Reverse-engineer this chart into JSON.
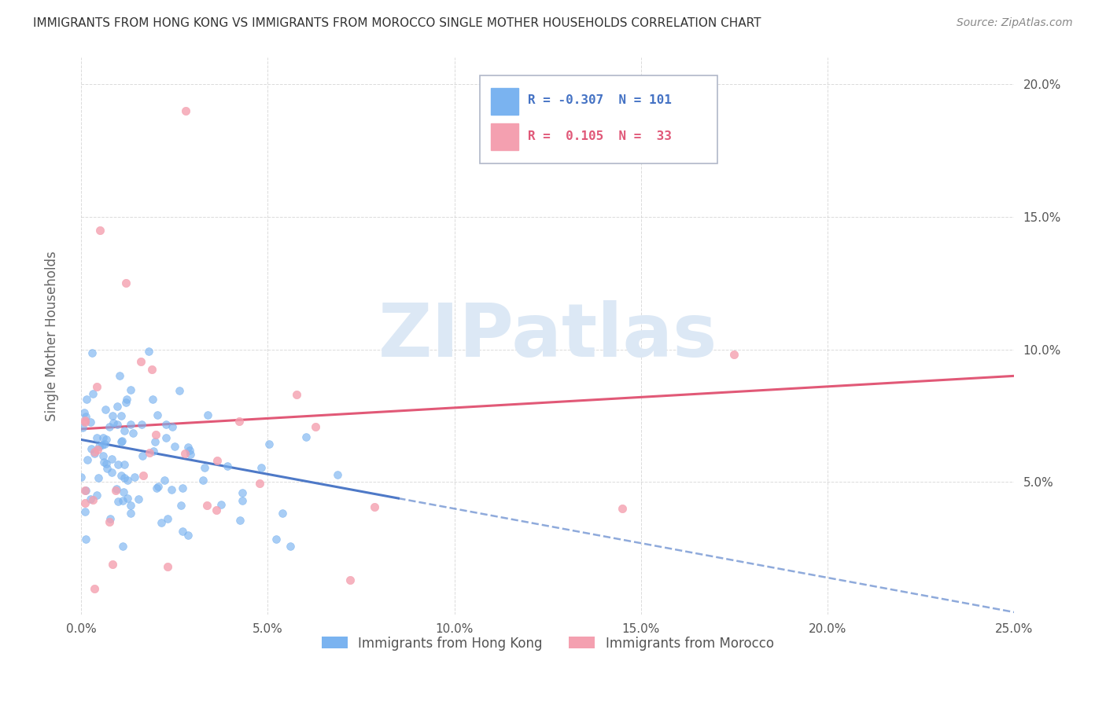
{
  "title": "IMMIGRANTS FROM HONG KONG VS IMMIGRANTS FROM MOROCCO SINGLE MOTHER HOUSEHOLDS CORRELATION CHART",
  "source": "Source: ZipAtlas.com",
  "ylabel": "Single Mother Households",
  "xlim": [
    0.0,
    0.25
  ],
  "ylim": [
    0.0,
    0.21
  ],
  "xtick_labels": [
    "0.0%",
    "5.0%",
    "10.0%",
    "15.0%",
    "20.0%",
    "25.0%"
  ],
  "xtick_vals": [
    0.0,
    0.05,
    0.1,
    0.15,
    0.2,
    0.25
  ],
  "ytick_vals": [
    0.05,
    0.1,
    0.15,
    0.2
  ],
  "right_ytick_labels": [
    "5.0%",
    "10.0%",
    "15.0%",
    "20.0%"
  ],
  "hk_color": "#7ab3f0",
  "morocco_color": "#f4a0b0",
  "hk_trend_color": "#4472c4",
  "morocco_trend_color": "#e05070",
  "hk_R": -0.307,
  "hk_N": 101,
  "morocco_R": 0.105,
  "morocco_N": 33,
  "grid_color": "#cccccc",
  "background_color": "#ffffff",
  "watermark_color": "#dce8f5",
  "legend_label_hk": "R = -0.307  N = 101",
  "legend_label_mo": "R =  0.105  N =  33",
  "legend_color_hk": "#4472c4",
  "legend_color_mo": "#e05878",
  "bottom_legend_hk": "Immigrants from Hong Kong",
  "bottom_legend_mo": "Immigrants from Morocco"
}
